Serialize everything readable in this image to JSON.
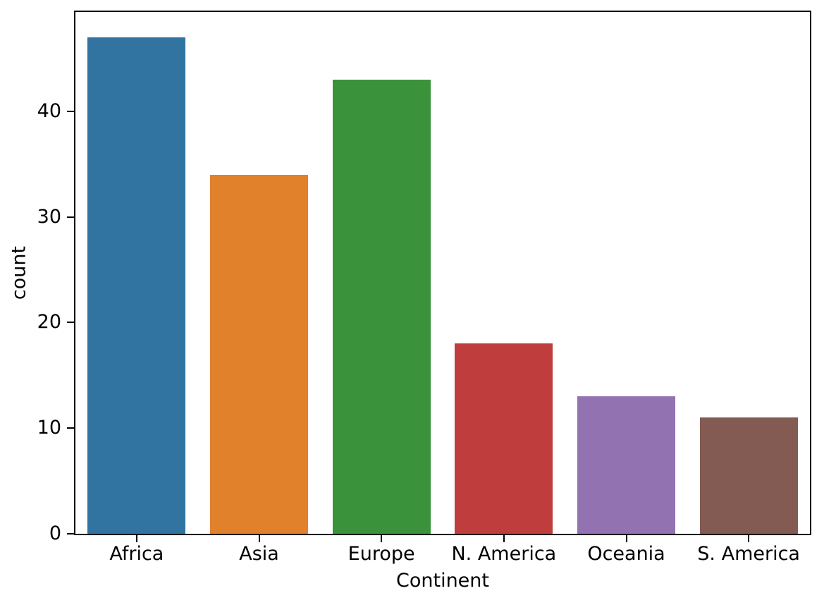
{
  "chart_data": {
    "type": "bar",
    "categories": [
      "Africa",
      "Asia",
      "Europe",
      "N. America",
      "Oceania",
      "S. America"
    ],
    "values": [
      47,
      34,
      43,
      18,
      13,
      11
    ],
    "bar_colors": [
      "#3274a1",
      "#e1812c",
      "#3a923a",
      "#c03d3e",
      "#9372b2",
      "#845b53"
    ],
    "xlabel": "Continent",
    "ylabel": "count",
    "yticks": [
      0,
      10,
      20,
      30,
      40
    ],
    "ylim": [
      0,
      49.4
    ],
    "bar_rel_width": 0.8,
    "grid": false,
    "legend": false,
    "axis_color": "#000000",
    "text_color": "#000000",
    "background_color": "#ffffff"
  }
}
